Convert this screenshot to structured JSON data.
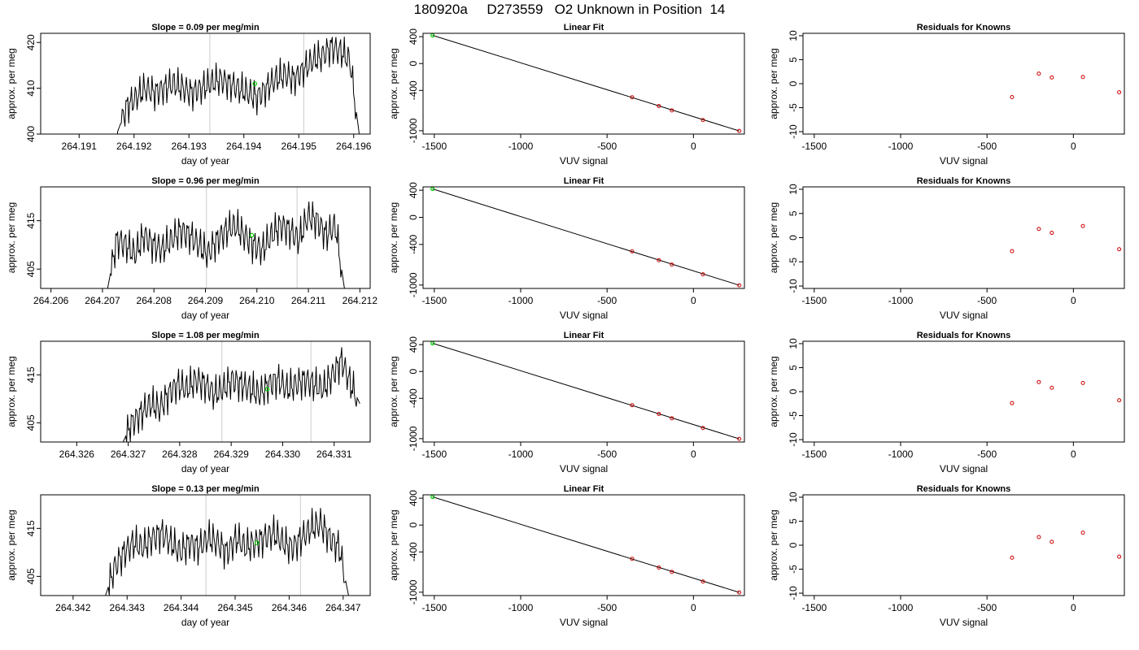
{
  "figure": {
    "title": "180920a     D273559   O2 Unknown in Position  14",
    "colors": {
      "trace": "#000000",
      "vline": "#cccccc",
      "unknown_point": "#00cc00",
      "known_point": "#cc0000",
      "fit_line": "#000000"
    }
  },
  "chart_data": [
    {
      "row": 1,
      "panels": [
        {
          "type": "line",
          "title": "Slope =  0.09  per meg/min",
          "xlabel": "day of year",
          "ylabel": "approx. per meg",
          "xlim": [
            264.1903,
            264.1963
          ],
          "ylim": [
            400,
            422
          ],
          "xticks": [
            "264.191",
            "264.192",
            "264.193",
            "264.194",
            "264.195",
            "264.196"
          ],
          "yticks": [
            "400",
            "410",
            "420"
          ],
          "vlines": [
            264.19338,
            264.19509
          ],
          "trace_range": [
            264.1917,
            264.1961
          ],
          "trace_levels": [
            400.5,
            406,
            408,
            410,
            409,
            410,
            411,
            410,
            409,
            410,
            411,
            412,
            411,
            410,
            409,
            408,
            410,
            412,
            413,
            412,
            414,
            416,
            417,
            419,
            418,
            416,
            400
          ],
          "marker": {
            "x": 264.1942,
            "y": 411
          }
        },
        {
          "type": "scatter",
          "title": "Linear Fit",
          "xlabel": "VUV signal",
          "ylabel": "approx. per meg",
          "xlim": [
            -1565,
            295
          ],
          "ylim": [
            -1050,
            450
          ],
          "xticks": [
            "-1500",
            "-1000",
            "-500",
            "0"
          ],
          "yticks": [
            "400",
            "0",
            "-400",
            "-1000"
          ],
          "fit_line": [
            [
              -1510,
              420
            ],
            [
              265,
              -1003
            ]
          ],
          "unknown": [
            [
              -1510,
              420
            ]
          ],
          "knowns": [
            [
              -355,
              -502
            ],
            [
              -200,
              -633
            ],
            [
              -125,
              -697
            ],
            [
              55,
              -841
            ],
            [
              265,
              -1003
            ]
          ]
        },
        {
          "type": "scatter",
          "title": "Residuals for Knowns",
          "xlabel": "VUV signal",
          "ylabel": "approx. per meg",
          "xlim": [
            -1565,
            295
          ],
          "ylim": [
            -10.5,
            10.5
          ],
          "xticks": [
            "-1500",
            "-1000",
            "-500",
            "0"
          ],
          "yticks": [
            "10",
            "5",
            "0",
            "-5",
            "-10"
          ],
          "knowns": [
            [
              -355,
              -2.8
            ],
            [
              -200,
              2.1
            ],
            [
              -125,
              1.3
            ],
            [
              55,
              1.4
            ],
            [
              265,
              -1.8
            ]
          ]
        }
      ]
    },
    {
      "row": 2,
      "panels": [
        {
          "type": "line",
          "title": "Slope =  0.96  per meg/min",
          "xlabel": "day of year",
          "ylabel": "approx. per meg",
          "xlim": [
            264.2058,
            264.2122
          ],
          "ylim": [
            401,
            422
          ],
          "xticks": [
            "264.206",
            "264.207",
            "264.208",
            "264.209",
            "264.210",
            "264.211",
            "264.212"
          ],
          "yticks": [
            "405",
            "415"
          ],
          "vlines": [
            264.20902,
            264.21078
          ],
          "trace_range": [
            264.2071,
            264.2117
          ],
          "trace_levels": [
            401,
            411,
            410,
            408,
            412,
            410,
            409,
            411,
            413,
            412,
            410,
            408,
            411,
            413,
            414,
            412,
            410,
            409,
            412,
            414,
            413,
            411,
            416,
            415,
            412,
            414,
            401
          ],
          "marker": {
            "x": 264.2099,
            "y": 412
          }
        },
        {
          "type": "scatter",
          "title": "Linear Fit",
          "xlabel": "VUV signal",
          "ylabel": "approx. per meg",
          "xlim": [
            -1565,
            295
          ],
          "ylim": [
            -1050,
            450
          ],
          "xticks": [
            "-1500",
            "-1000",
            "-500",
            "0"
          ],
          "yticks": [
            "400",
            "0",
            "-400",
            "-1000"
          ],
          "fit_line": [
            [
              -1510,
              420
            ],
            [
              265,
              -1003
            ]
          ],
          "unknown": [
            [
              -1510,
              420
            ]
          ],
          "knowns": [
            [
              -355,
              -502
            ],
            [
              -200,
              -633
            ],
            [
              -125,
              -697
            ],
            [
              55,
              -841
            ],
            [
              265,
              -1003
            ]
          ]
        },
        {
          "type": "scatter",
          "title": "Residuals for Knowns",
          "xlabel": "VUV signal",
          "ylabel": "approx. per meg",
          "xlim": [
            -1565,
            295
          ],
          "ylim": [
            -10.5,
            10.5
          ],
          "xticks": [
            "-1500",
            "-1000",
            "-500",
            "0"
          ],
          "yticks": [
            "10",
            "5",
            "0",
            "-5",
            "-10"
          ],
          "knowns": [
            [
              -355,
              -2.8
            ],
            [
              -200,
              1.8
            ],
            [
              -125,
              1.0
            ],
            [
              55,
              2.4
            ],
            [
              265,
              -2.4
            ]
          ]
        }
      ]
    },
    {
      "row": 3,
      "panels": [
        {
          "type": "line",
          "title": "Slope =  1.08  per meg/min",
          "xlabel": "day of year",
          "ylabel": "approx. per meg",
          "xlim": [
            264.3253,
            264.3317
          ],
          "ylim": [
            401,
            422
          ],
          "xticks": [
            "264.326",
            "264.327",
            "264.328",
            "264.329",
            "264.330",
            "264.331"
          ],
          "yticks": [
            "405",
            "415"
          ],
          "vlines": [
            264.32882,
            264.33055
          ],
          "trace_range": [
            264.3269,
            264.3315
          ],
          "trace_levels": [
            401,
            405,
            407,
            409,
            408,
            411,
            413,
            412,
            414,
            413,
            411,
            412,
            414,
            413,
            412,
            411,
            413,
            414,
            412,
            413,
            414,
            413,
            412,
            415,
            418,
            413,
            409
          ],
          "marker": {
            "x": 264.3297,
            "y": 412
          }
        },
        {
          "type": "scatter",
          "title": "Linear Fit",
          "xlabel": "VUV signal",
          "ylabel": "approx. per meg",
          "xlim": [
            -1565,
            295
          ],
          "ylim": [
            -1050,
            450
          ],
          "xticks": [
            "-1500",
            "-1000",
            "-500",
            "0"
          ],
          "yticks": [
            "400",
            "0",
            "-400",
            "-1000"
          ],
          "fit_line": [
            [
              -1510,
              420
            ],
            [
              265,
              -1003
            ]
          ],
          "unknown": [
            [
              -1510,
              420
            ]
          ],
          "knowns": [
            [
              -355,
              -502
            ],
            [
              -200,
              -633
            ],
            [
              -125,
              -697
            ],
            [
              55,
              -841
            ],
            [
              265,
              -1003
            ]
          ]
        },
        {
          "type": "scatter",
          "title": "Residuals for Knowns",
          "xlabel": "VUV signal",
          "ylabel": "approx. per meg",
          "xlim": [
            -1565,
            295
          ],
          "ylim": [
            -10.5,
            10.5
          ],
          "xticks": [
            "-1500",
            "-1000",
            "-500",
            "0"
          ],
          "yticks": [
            "10",
            "5",
            "0",
            "-5",
            "-10"
          ],
          "knowns": [
            [
              -355,
              -2.4
            ],
            [
              -200,
              2.0
            ],
            [
              -125,
              0.8
            ],
            [
              55,
              1.8
            ],
            [
              265,
              -1.8
            ]
          ]
        }
      ]
    },
    {
      "row": 4,
      "panels": [
        {
          "type": "line",
          "title": "Slope =  0.13  per meg/min",
          "xlabel": "day of year",
          "ylabel": "approx. per meg",
          "xlim": [
            264.3414,
            264.3475
          ],
          "ylim": [
            401,
            422
          ],
          "xticks": [
            "264.342",
            "264.343",
            "264.344",
            "264.345",
            "264.346",
            "264.347"
          ],
          "yticks": [
            "405",
            "415"
          ],
          "vlines": [
            264.34446,
            264.34621
          ],
          "trace_range": [
            264.3426,
            264.3471
          ],
          "trace_levels": [
            401,
            407,
            410,
            412,
            411,
            413,
            414,
            412,
            410,
            412,
            411,
            413,
            412,
            410,
            413,
            411,
            412,
            413,
            414,
            412,
            411,
            413,
            415,
            416,
            413,
            411,
            401
          ],
          "marker": {
            "x": 264.3454,
            "y": 412
          }
        },
        {
          "type": "scatter",
          "title": "Linear Fit",
          "xlabel": "VUV signal",
          "ylabel": "approx. per meg",
          "xlim": [
            -1565,
            295
          ],
          "ylim": [
            -1050,
            450
          ],
          "xticks": [
            "-1500",
            "-1000",
            "-500",
            "0"
          ],
          "yticks": [
            "400",
            "0",
            "-400",
            "-1000"
          ],
          "fit_line": [
            [
              -1510,
              420
            ],
            [
              265,
              -1003
            ]
          ],
          "unknown": [
            [
              -1510,
              420
            ]
          ],
          "knowns": [
            [
              -355,
              -502
            ],
            [
              -200,
              -633
            ],
            [
              -125,
              -697
            ],
            [
              55,
              -841
            ],
            [
              265,
              -1003
            ]
          ]
        },
        {
          "type": "scatter",
          "title": "Residuals for Knowns",
          "xlabel": "VUV signal",
          "ylabel": "approx. per meg",
          "xlim": [
            -1565,
            295
          ],
          "ylim": [
            -10.5,
            10.5
          ],
          "xticks": [
            "-1500",
            "-1000",
            "-500",
            "0"
          ],
          "yticks": [
            "10",
            "5",
            "0",
            "-5",
            "-10"
          ],
          "knowns": [
            [
              -355,
              -2.6
            ],
            [
              -200,
              1.7
            ],
            [
              -125,
              0.7
            ],
            [
              55,
              2.6
            ],
            [
              265,
              -2.4
            ]
          ]
        }
      ]
    }
  ]
}
